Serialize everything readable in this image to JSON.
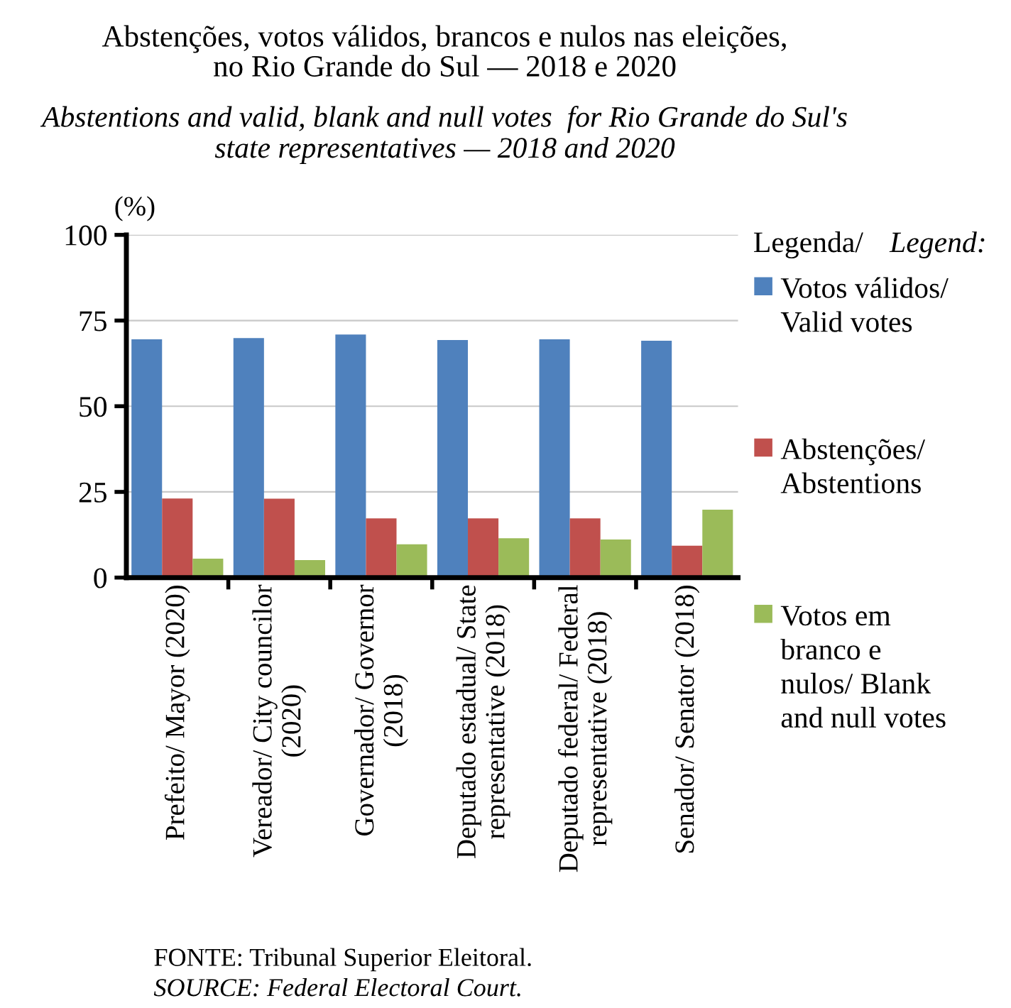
{
  "chart_data": {
    "type": "bar",
    "title": "Abstenções, votos válidos, brancos e nulos nas eleições,\nno Rio Grande do Sul — 2018 e 2020",
    "subtitle": "Abstentions and valid, blank and null votes  for Rio Grande do Sul's\nstate representatives — 2018 and 2020",
    "ylabel": "(%)",
    "legend_title": "Legenda/Legend:",
    "categories": [
      "Prefeito/ Mayor (2020)",
      "Vereador/ City councilor\n(2020)",
      "Governador/ Governor\n(2018)",
      "Deputado estadual/ State\nrepresentative (2018)",
      "Deputado federal/ Federal\nrepresentative (2018)",
      "Senador/ Senator (2018)"
    ],
    "series": [
      {
        "name": "Votos válidos/\nValid votes",
        "color": "#4f81bd",
        "values": [
          69.5,
          69.9,
          70.9,
          69.3,
          69.5,
          69.1
        ]
      },
      {
        "name": "Abstenções/\nAbstentions",
        "color": "#c0504d",
        "values": [
          23.1,
          23.0,
          17.3,
          17.3,
          17.3,
          9.3
        ]
      },
      {
        "name": "Votos em\nbranco e\nnulos/ Blank\nand null votes",
        "color": "#9bbb59",
        "values": [
          5.5,
          5.1,
          9.7,
          11.5,
          11.1,
          19.8
        ]
      }
    ],
    "ylim": [
      0,
      100
    ],
    "yticks": [
      0,
      25,
      50,
      75,
      100
    ],
    "grid": "y",
    "legend": "right",
    "annotations": [
      "FONTE: Tribunal Superior Eleitoral.",
      "SOURCE: Federal Electoral Court."
    ]
  }
}
